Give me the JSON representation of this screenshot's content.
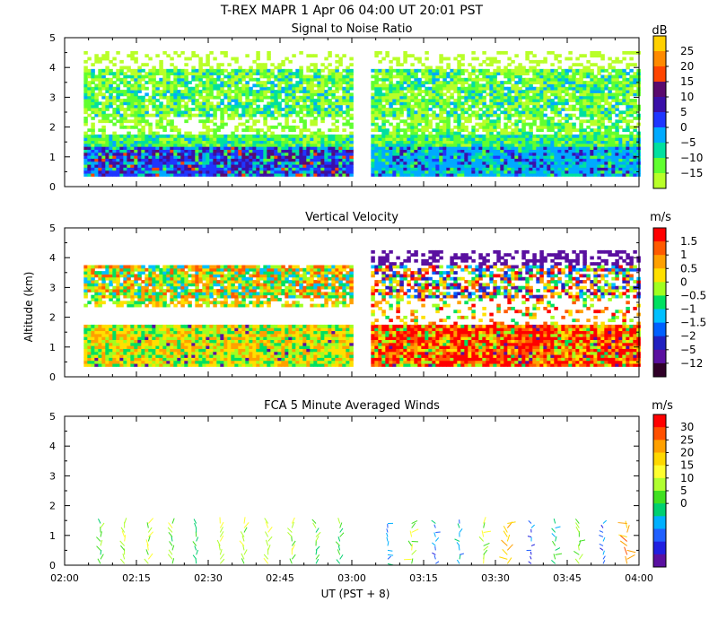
{
  "figure": {
    "title": "T-REX   MAPR   1 Apr 06   04:00 UT   20:01   PST",
    "x_axis_label": "UT  (PST + 8)",
    "y_axis_label": "Altitude (km)"
  },
  "chart_data": [
    {
      "id": "snr",
      "type": "heatmap",
      "title": "Signal to Noise Ratio",
      "xlabel": "UT  (PST + 8)",
      "ylabel": "Altitude (km)",
      "xlim": [
        0,
        120
      ],
      "ylim": [
        0,
        5
      ],
      "x_ticks": [
        "02:00",
        "02:15",
        "02:30",
        "02:45",
        "03:00",
        "03:15",
        "03:30",
        "03:45",
        "04:00"
      ],
      "y_ticks": [
        "0",
        "1",
        "2",
        "3",
        "4",
        "5"
      ],
      "colorbar": {
        "unit": "dB",
        "levels": [
          "25",
          "20",
          "15",
          "10",
          "5",
          "0",
          "−5",
          "−10",
          "−15"
        ],
        "colors": [
          "#ffd000",
          "#ff8a00",
          "#ff4500",
          "#5a0a6e",
          "#3a10a8",
          "#1f36ff",
          "#00aaff",
          "#00e0a0",
          "#60ff30",
          "#b8ff28"
        ]
      },
      "data_gap": [
        60,
        64
      ],
      "data_range_minutes": [
        4,
        120
      ],
      "layers": [
        {
          "alt": [
            0.35,
            1.3
          ],
          "level": "-5 to 10 dB (strong near surface)"
        },
        {
          "alt": [
            1.3,
            1.9
          ],
          "level": "-10 to -5 dB"
        },
        {
          "alt": [
            2.4,
            4.0
          ],
          "level": "-15 to -5 dB"
        }
      ]
    },
    {
      "id": "vv",
      "type": "heatmap",
      "title": "Vertical Velocity",
      "xlabel": "UT  (PST + 8)",
      "ylabel": "Altitude (km)",
      "xlim": [
        0,
        120
      ],
      "ylim": [
        0,
        5
      ],
      "x_ticks": [
        "02:00",
        "02:15",
        "02:30",
        "02:45",
        "03:00",
        "03:15",
        "03:30",
        "03:45",
        "04:00"
      ],
      "y_ticks": [
        "0",
        "1",
        "2",
        "3",
        "4",
        "5"
      ],
      "colorbar": {
        "unit": "m/s",
        "levels": [
          "1.5",
          "1",
          "0.5",
          "0",
          "−0.5",
          "−1",
          "−1.5",
          "−2",
          "−5",
          "−12"
        ],
        "colors": [
          "#ff0000",
          "#ff5a00",
          "#ffa000",
          "#ffe000",
          "#a0ff20",
          "#00e060",
          "#00c0ff",
          "#0060ff",
          "#2020c0",
          "#5a10a0",
          "#300028"
        ]
      },
      "data_gap": [
        60,
        64
      ],
      "data_range_minutes": [
        4,
        120
      ]
    },
    {
      "id": "winds",
      "type": "scatter",
      "title": "FCA 5 Minute Averaged Winds",
      "xlabel": "UT  (PST + 8)",
      "ylabel": "Altitude (km)",
      "xlim": [
        0,
        120
      ],
      "ylim": [
        0,
        5
      ],
      "x_ticks": [
        "02:00",
        "02:15",
        "02:30",
        "02:45",
        "03:00",
        "03:15",
        "03:30",
        "03:45",
        "04:00"
      ],
      "y_ticks": [
        "0",
        "1",
        "2",
        "3",
        "4",
        "5"
      ],
      "colorbar": {
        "unit": "m/s",
        "levels": [
          "30",
          "25",
          "20",
          "15",
          "10",
          "5",
          "0"
        ],
        "colors": [
          "#ff0000",
          "#ff5000",
          "#ffa000",
          "#ffd800",
          "#ffff30",
          "#b0ff30",
          "#40e020",
          "#00d070",
          "#00b0ff",
          "#2060ff",
          "#2020e0",
          "#5a10a0"
        ]
      },
      "times_min": [
        7.5,
        12.5,
        17.5,
        22.5,
        27.5,
        32.5,
        37.5,
        42.5,
        47.5,
        52.5,
        57.5,
        67.5,
        72.5,
        77.5,
        82.5,
        87.5,
        92.5,
        97.5,
        102.5,
        107.5,
        112.5,
        117.5
      ],
      "altitudes_km": [
        0.05,
        0.2,
        0.35,
        0.5,
        0.65,
        0.8,
        0.95,
        1.1,
        1.25,
        1.4
      ],
      "speed_ms_approx": [
        14,
        17,
        17,
        15,
        12,
        16,
        17,
        17,
        16,
        14,
        13,
        8,
        16,
        7,
        8,
        17,
        23,
        5,
        12,
        15,
        6,
        25
      ],
      "note": "wind barbs below ~1.5 km; arrow lengths scale with speed"
    }
  ]
}
